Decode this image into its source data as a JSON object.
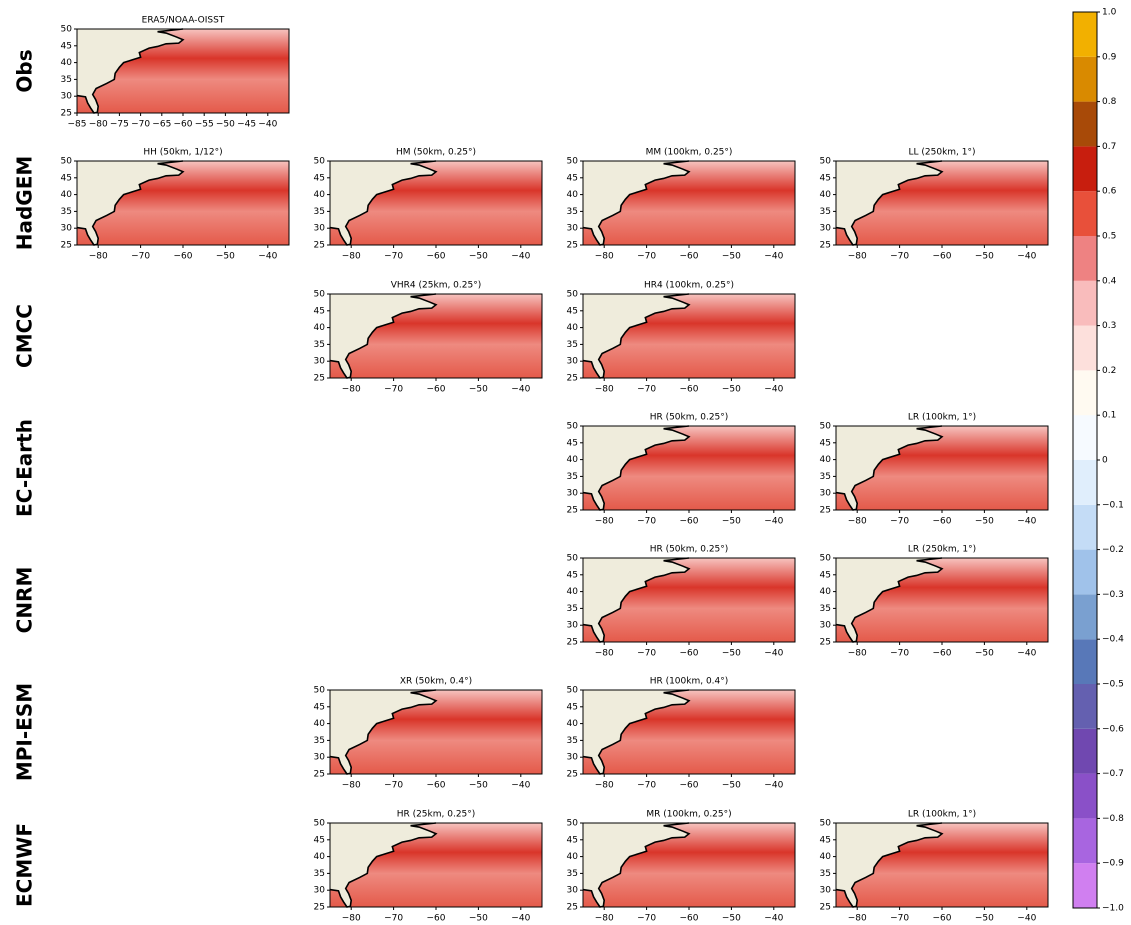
{
  "map_axes": {
    "lon_range": [
      -85,
      -35
    ],
    "lat_range": [
      25,
      50
    ],
    "yticks": [
      25,
      30,
      35,
      40,
      45,
      50
    ],
    "xticks": [
      {
        "value": -80,
        "label": "−80"
      },
      {
        "value": -70,
        "label": "−70"
      },
      {
        "value": -60,
        "label": "−60"
      },
      {
        "value": -50,
        "label": "−50"
      },
      {
        "value": -40,
        "label": "−40"
      }
    ],
    "obs_xticks": [
      {
        "value": -85,
        "label": "−85"
      },
      {
        "value": -80,
        "label": "−80"
      },
      {
        "value": -75,
        "label": "−75"
      },
      {
        "value": -70,
        "label": "−70"
      },
      {
        "value": -65,
        "label": "−65"
      },
      {
        "value": -60,
        "label": "−60"
      },
      {
        "value": -55,
        "label": "−55"
      },
      {
        "value": -50,
        "label": "−50"
      },
      {
        "value": -45,
        "label": "−45"
      },
      {
        "value": -40,
        "label": "−40"
      }
    ]
  },
  "rows": [
    {
      "label": "Obs",
      "panels": [
        {
          "title": "ERA5/NOAA-OISST"
        },
        null,
        null,
        null
      ]
    },
    {
      "label": "HadGEM",
      "panels": [
        {
          "title": "HH (50km, 1/12°)"
        },
        {
          "title": "HM (50km, 0.25°)"
        },
        {
          "title": "MM (100km, 0.25°)"
        },
        {
          "title": "LL (250km, 1°)"
        }
      ]
    },
    {
      "label": "CMCC",
      "panels": [
        null,
        {
          "title": "VHR4 (25km, 0.25°)"
        },
        {
          "title": "HR4 (100km, 0.25°)"
        },
        null
      ]
    },
    {
      "label": "EC-Earth",
      "panels": [
        null,
        null,
        {
          "title": "HR (50km, 0.25°)"
        },
        {
          "title": "LR (100km, 1°)"
        }
      ]
    },
    {
      "label": "CNRM",
      "panels": [
        null,
        null,
        {
          "title": "HR (50km, 0.25°)"
        },
        {
          "title": "LR (250km, 1°)"
        }
      ]
    },
    {
      "label": "MPI-ESM",
      "panels": [
        null,
        {
          "title": "XR (50km, 0.4°)"
        },
        {
          "title": "HR (100km, 0.4°)"
        },
        null
      ]
    },
    {
      "label": "ECMWF",
      "panels": [
        null,
        {
          "title": "HR (25km, 0.25°)"
        },
        {
          "title": "MR (100km, 0.25°)"
        },
        {
          "title": "LR (100km, 1°)"
        }
      ]
    }
  ],
  "colorbar": {
    "ticks": [
      {
        "value": -1,
        "label": "−1.0"
      },
      {
        "value": -0.9,
        "label": "−0.9"
      },
      {
        "value": -0.8,
        "label": "−0.8"
      },
      {
        "value": -0.7,
        "label": "−0.7"
      },
      {
        "value": -0.6,
        "label": "−0.6"
      },
      {
        "value": -0.5,
        "label": "−0.5"
      },
      {
        "value": -0.4,
        "label": "−0.4"
      },
      {
        "value": -0.3,
        "label": "−0.3"
      },
      {
        "value": -0.2,
        "label": "−0.2"
      },
      {
        "value": -0.1,
        "label": "−0.1"
      },
      0.0,
      0.1,
      0.2,
      0.3,
      0.4,
      0.5,
      0.6,
      0.7,
      0.8,
      0.9,
      {
        "value": 1,
        "label": "1.0"
      }
    ],
    "colors": [
      "#d07ff0",
      "#a865e0",
      "#8a50c8",
      "#7048b0",
      "#6460b0",
      "#5878b8",
      "#7aa0d0",
      "#a0c2ea",
      "#c4dcf6",
      "#e0eefc",
      "#f6faff",
      "#fffaf1",
      "#fde0dc",
      "#f9bcbc",
      "#ee8282",
      "#e8503a",
      "#c81e0e",
      "#a84a08",
      "#d98a00",
      "#f2b000",
      "#ffde00"
    ]
  }
}
